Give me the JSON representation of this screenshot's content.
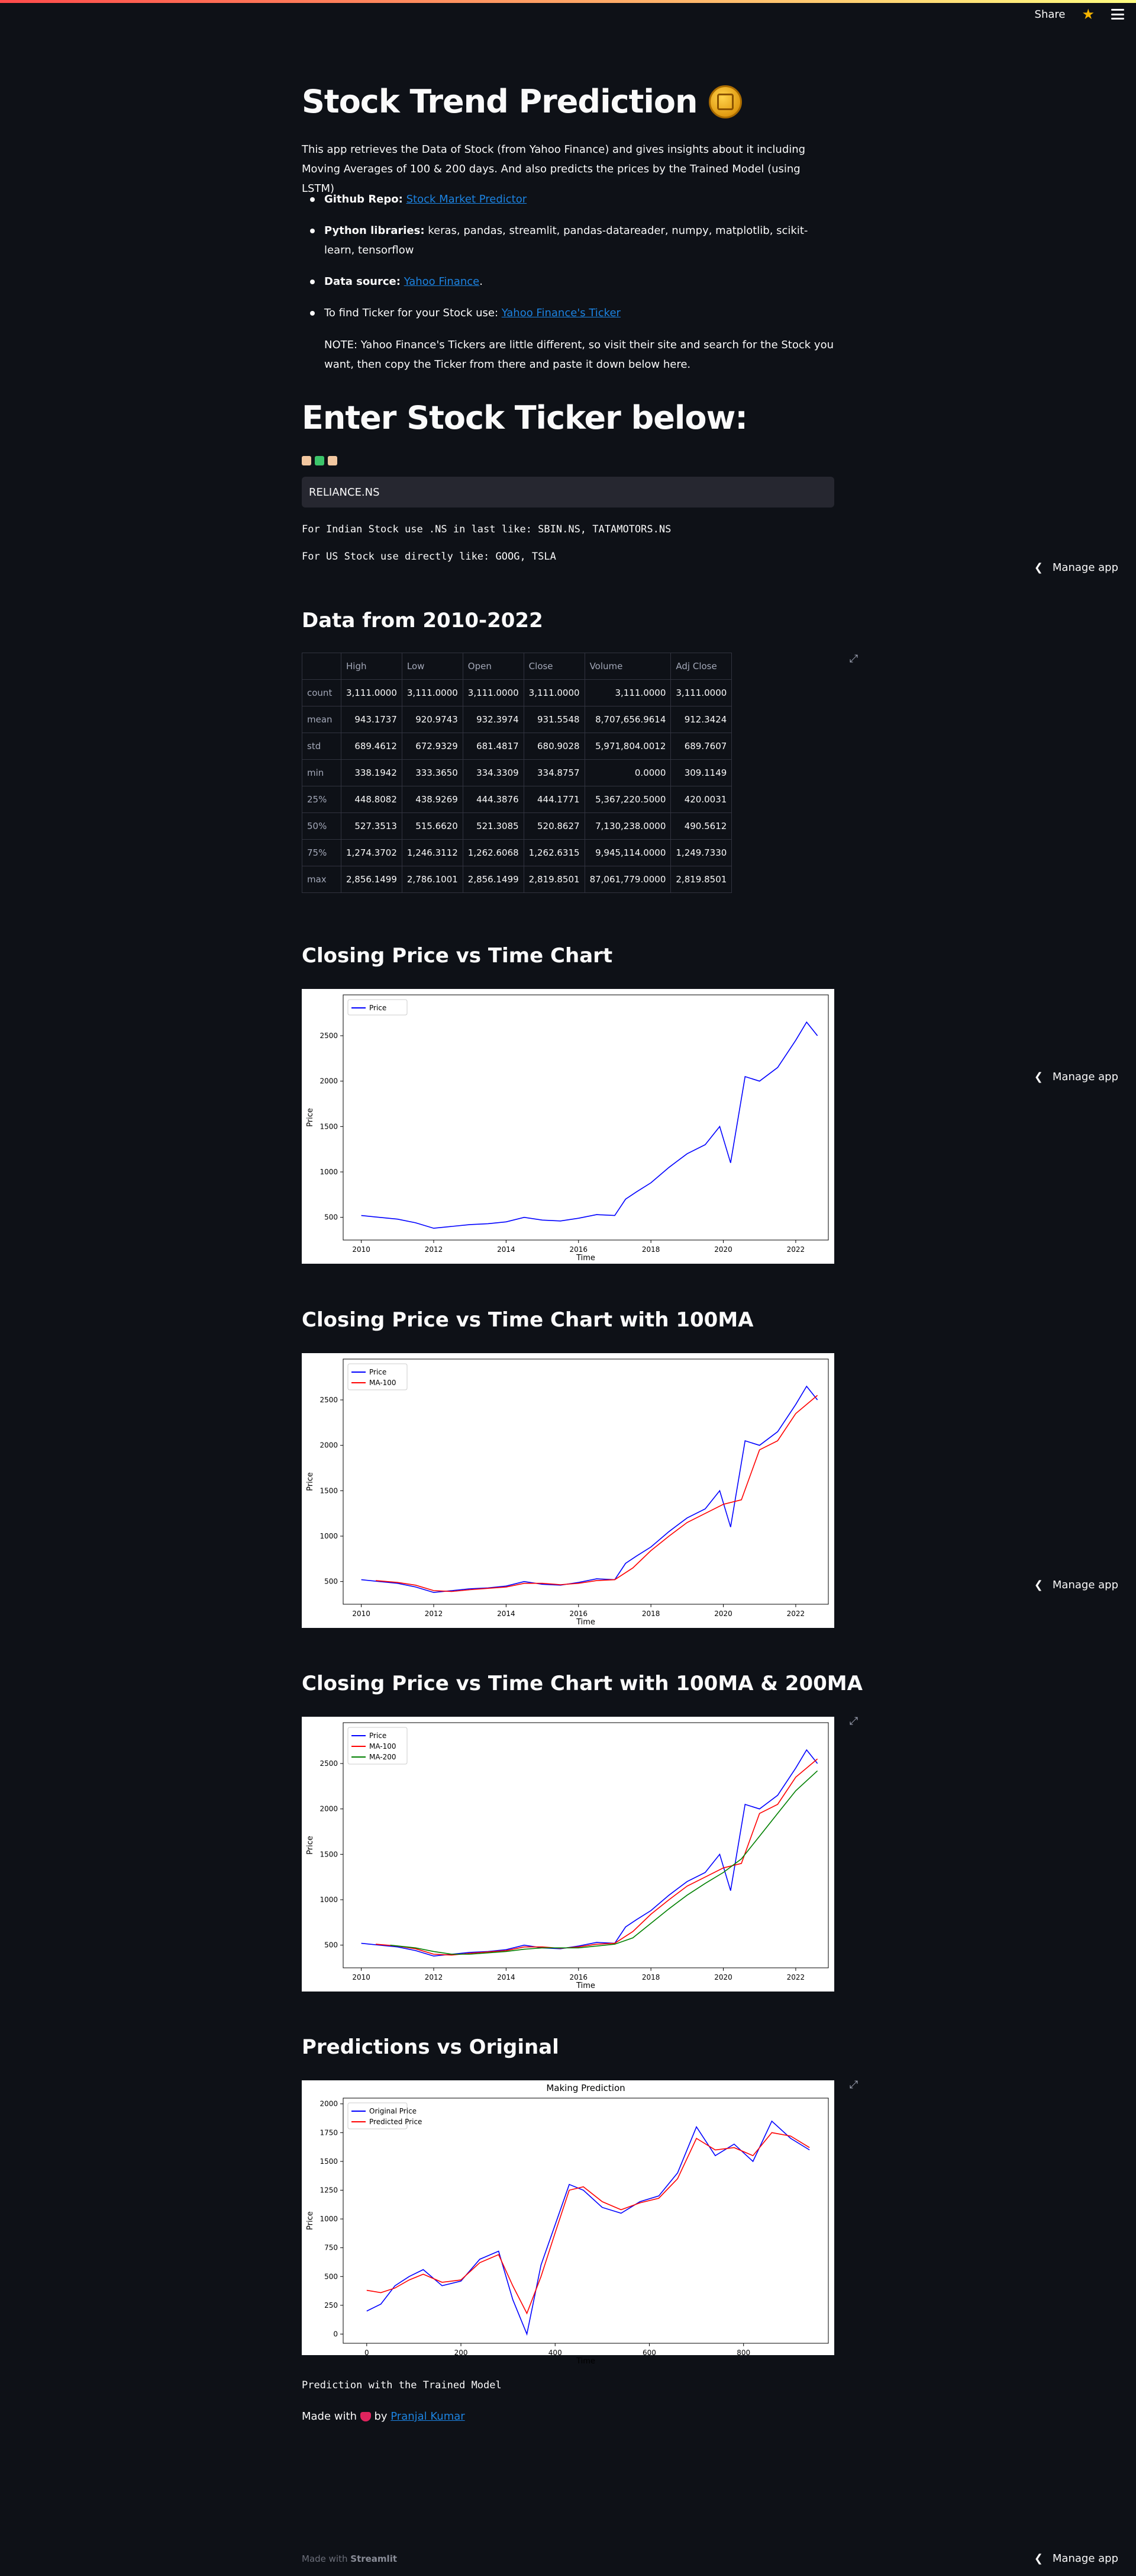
{
  "header": {
    "share_label": "Share"
  },
  "page": {
    "title": "Stock Trend Prediction",
    "intro": "This app retrieves the Data of Stock (from Yahoo Finance) and gives insights about it including Moving Averages of 100 & 200 days. And also predicts the prices by the Trained Model (using LSTM)",
    "bullets": {
      "repo_label": "Github Repo:",
      "repo_link": "Stock Market Predictor",
      "libs_label": "Python libraries:",
      "libs_text": " keras, pandas, streamlit, pandas-datareader, numpy, matplotlib, scikit-learn, tensorflow",
      "source_label": "Data source:",
      "source_link": "Yahoo Finance",
      "source_end": ".",
      "ticker_text": "To find Ticker for your Stock use: ",
      "ticker_link": "Yahoo Finance's Ticker"
    },
    "note": "NOTE: Yahoo Finance's Tickers are little different, so visit their site and search for the Stock you want, then copy the Ticker from there and paste it down below here.",
    "enter_heading": "Enter Stock Ticker below:",
    "ticker_value": "RELIANCE.NS",
    "hint_indian": "For Indian Stock use .NS in last like: SBIN.NS, TATAMOTORS.NS",
    "hint_us": "For US Stock use directly like: GOOG, TSLA",
    "data_heading": "Data from 2010-2022",
    "chart1_heading": "Closing Price vs Time Chart",
    "chart2_heading": "Closing Price vs Time Chart with 100MA",
    "chart3_heading": "Closing Price vs Time Chart with 100MA & 200MA",
    "chart4_heading": "Predictions vs Original",
    "prediction_caption": "Prediction with the Trained Model",
    "made_with": "Made with",
    "by": "by",
    "author": "Pranjal Kumar",
    "manage_app": "Manage app",
    "streamlit_made": "Made with",
    "streamlit_brand": "Streamlit"
  },
  "table": {
    "columns": [
      "",
      "High",
      "Low",
      "Open",
      "Close",
      "Volume",
      "Adj Close"
    ],
    "rows": [
      [
        "count",
        "3,111.0000",
        "3,111.0000",
        "3,111.0000",
        "3,111.0000",
        "3,111.0000",
        "3,111.0000"
      ],
      [
        "mean",
        "943.1737",
        "920.9743",
        "932.3974",
        "931.5548",
        "8,707,656.9614",
        "912.3424"
      ],
      [
        "std",
        "689.4612",
        "672.9329",
        "681.4817",
        "680.9028",
        "5,971,804.0012",
        "689.7607"
      ],
      [
        "min",
        "338.1942",
        "333.3650",
        "334.3309",
        "334.8757",
        "0.0000",
        "309.1149"
      ],
      [
        "25%",
        "448.8082",
        "438.9269",
        "444.3876",
        "444.1771",
        "5,367,220.5000",
        "420.0031"
      ],
      [
        "50%",
        "527.3513",
        "515.6620",
        "521.3085",
        "520.8627",
        "7,130,238.0000",
        "490.5612"
      ],
      [
        "75%",
        "1,274.3702",
        "1,246.3112",
        "1,262.6068",
        "1,262.6315",
        "9,945,114.0000",
        "1,249.7330"
      ],
      [
        "max",
        "2,856.1499",
        "2,786.1001",
        "2,856.1499",
        "2,819.8501",
        "87,061,779.0000",
        "2,819.8501"
      ]
    ]
  },
  "colors": {
    "price": "#0000ff",
    "ma100": "#ff0000",
    "ma200": "#008000",
    "accent": "#1c83e1"
  },
  "chart_data": [
    {
      "type": "line",
      "xlabel": "Time",
      "ylabel": "Price",
      "xlim": [
        2009.5,
        2022.9
      ],
      "ylim": [
        250,
        2950
      ],
      "xticks": [
        "2010",
        "2012",
        "2014",
        "2016",
        "2018",
        "2020",
        "2022"
      ],
      "yticks": [
        "500",
        "1000",
        "1500",
        "2000",
        "2500"
      ],
      "legend": "top-left",
      "series": [
        {
          "name": "Price",
          "color": "#0000ff",
          "x": [
            2010,
            2010.5,
            2011,
            2011.5,
            2012,
            2012.5,
            2013,
            2013.5,
            2014,
            2014.5,
            2015,
            2015.5,
            2016,
            2016.5,
            2017,
            2017.3,
            2017.6,
            2018,
            2018.5,
            2019,
            2019.5,
            2019.9,
            2020.2,
            2020.6,
            2021,
            2021.5,
            2022,
            2022.3,
            2022.6
          ],
          "values": [
            520,
            500,
            480,
            440,
            380,
            400,
            420,
            430,
            450,
            500,
            470,
            460,
            490,
            530,
            520,
            700,
            780,
            880,
            1050,
            1200,
            1300,
            1500,
            1100,
            2050,
            2000,
            2150,
            2450,
            2650,
            2500
          ]
        }
      ]
    },
    {
      "type": "line",
      "xlabel": "Time",
      "ylabel": "Price",
      "xlim": [
        2009.5,
        2022.9
      ],
      "ylim": [
        250,
        2950
      ],
      "xticks": [
        "2010",
        "2012",
        "2014",
        "2016",
        "2018",
        "2020",
        "2022"
      ],
      "yticks": [
        "500",
        "1000",
        "1500",
        "2000",
        "2500"
      ],
      "legend": "top-left",
      "series": [
        {
          "name": "Price",
          "color": "#0000ff",
          "x": [
            2010,
            2010.5,
            2011,
            2011.5,
            2012,
            2012.5,
            2013,
            2013.5,
            2014,
            2014.5,
            2015,
            2015.5,
            2016,
            2016.5,
            2017,
            2017.3,
            2017.6,
            2018,
            2018.5,
            2019,
            2019.5,
            2019.9,
            2020.2,
            2020.6,
            2021,
            2021.5,
            2022,
            2022.3,
            2022.6
          ],
          "values": [
            520,
            500,
            480,
            440,
            380,
            400,
            420,
            430,
            450,
            500,
            470,
            460,
            490,
            530,
            520,
            700,
            780,
            880,
            1050,
            1200,
            1300,
            1500,
            1100,
            2050,
            2000,
            2150,
            2450,
            2650,
            2500
          ]
        },
        {
          "name": "MA-100",
          "color": "#ff0000",
          "x": [
            2010.4,
            2011,
            2011.5,
            2012,
            2012.5,
            2013,
            2013.5,
            2014,
            2014.5,
            2015,
            2015.5,
            2016,
            2016.5,
            2017,
            2017.5,
            2018,
            2018.5,
            2019,
            2019.5,
            2020,
            2020.5,
            2021,
            2021.5,
            2022,
            2022.6
          ],
          "values": [
            510,
            490,
            460,
            400,
            390,
            410,
            425,
            440,
            480,
            480,
            465,
            480,
            510,
            520,
            650,
            840,
            1000,
            1150,
            1250,
            1350,
            1400,
            1950,
            2050,
            2350,
            2550
          ]
        }
      ]
    },
    {
      "type": "line",
      "xlabel": "Time",
      "ylabel": "Price",
      "xlim": [
        2009.5,
        2022.9
      ],
      "ylim": [
        250,
        2950
      ],
      "xticks": [
        "2010",
        "2012",
        "2014",
        "2016",
        "2018",
        "2020",
        "2022"
      ],
      "yticks": [
        "500",
        "1000",
        "1500",
        "2000",
        "2500"
      ],
      "legend": "top-left",
      "series": [
        {
          "name": "Price",
          "color": "#0000ff",
          "x": [
            2010,
            2010.5,
            2011,
            2011.5,
            2012,
            2012.5,
            2013,
            2013.5,
            2014,
            2014.5,
            2015,
            2015.5,
            2016,
            2016.5,
            2017,
            2017.3,
            2017.6,
            2018,
            2018.5,
            2019,
            2019.5,
            2019.9,
            2020.2,
            2020.6,
            2021,
            2021.5,
            2022,
            2022.3,
            2022.6
          ],
          "values": [
            520,
            500,
            480,
            440,
            380,
            400,
            420,
            430,
            450,
            500,
            470,
            460,
            490,
            530,
            520,
            700,
            780,
            880,
            1050,
            1200,
            1300,
            1500,
            1100,
            2050,
            2000,
            2150,
            2450,
            2650,
            2500
          ]
        },
        {
          "name": "MA-100",
          "color": "#ff0000",
          "x": [
            2010.4,
            2011,
            2011.5,
            2012,
            2012.5,
            2013,
            2013.5,
            2014,
            2014.5,
            2015,
            2015.5,
            2016,
            2016.5,
            2017,
            2017.5,
            2018,
            2018.5,
            2019,
            2019.5,
            2020,
            2020.5,
            2021,
            2021.5,
            2022,
            2022.6
          ],
          "values": [
            510,
            490,
            460,
            400,
            390,
            410,
            425,
            440,
            480,
            480,
            465,
            480,
            510,
            520,
            650,
            840,
            1000,
            1150,
            1250,
            1350,
            1400,
            1950,
            2050,
            2350,
            2550
          ]
        },
        {
          "name": "MA-200",
          "color": "#008000",
          "x": [
            2010.8,
            2011.5,
            2012,
            2012.5,
            2013,
            2013.5,
            2014,
            2014.5,
            2015,
            2015.5,
            2016,
            2016.5,
            2017,
            2017.5,
            2018,
            2018.5,
            2019,
            2019.5,
            2020,
            2020.5,
            2021,
            2021.5,
            2022,
            2022.6
          ],
          "values": [
            500,
            470,
            430,
            400,
            400,
            415,
            430,
            455,
            470,
            470,
            470,
            490,
            510,
            580,
            740,
            900,
            1050,
            1180,
            1300,
            1450,
            1700,
            1950,
            2200,
            2420
          ]
        }
      ]
    },
    {
      "type": "line",
      "title": "Making Prediction",
      "xlabel": "Time",
      "ylabel": "Price",
      "xlim": [
        -50,
        980
      ],
      "ylim": [
        -80,
        2050
      ],
      "xticks": [
        "0",
        "200",
        "400",
        "600",
        "800"
      ],
      "yticks": [
        "0",
        "250",
        "500",
        "750",
        "1000",
        "1250",
        "1500",
        "1750",
        "2000"
      ],
      "legend": "top-left",
      "series": [
        {
          "name": "Original Price",
          "color": "#0000ff",
          "x": [
            0,
            30,
            60,
            90,
            120,
            160,
            200,
            240,
            280,
            310,
            340,
            370,
            400,
            430,
            460,
            500,
            540,
            580,
            620,
            660,
            700,
            740,
            780,
            820,
            860,
            900,
            940
          ],
          "values": [
            200,
            260,
            420,
            500,
            560,
            420,
            460,
            650,
            720,
            300,
            0,
            600,
            950,
            1300,
            1250,
            1100,
            1050,
            1150,
            1200,
            1400,
            1800,
            1550,
            1650,
            1500,
            1850,
            1700,
            1600
          ]
        },
        {
          "name": "Predicted Price",
          "color": "#ff0000",
          "x": [
            0,
            30,
            60,
            90,
            120,
            160,
            200,
            240,
            280,
            310,
            340,
            370,
            400,
            430,
            460,
            500,
            540,
            580,
            620,
            660,
            700,
            740,
            780,
            820,
            860,
            900,
            940
          ],
          "values": [
            380,
            360,
            400,
            470,
            520,
            450,
            470,
            620,
            690,
            420,
            180,
            500,
            880,
            1250,
            1280,
            1150,
            1080,
            1140,
            1180,
            1350,
            1700,
            1600,
            1620,
            1550,
            1750,
            1720,
            1620
          ]
        }
      ]
    }
  ]
}
